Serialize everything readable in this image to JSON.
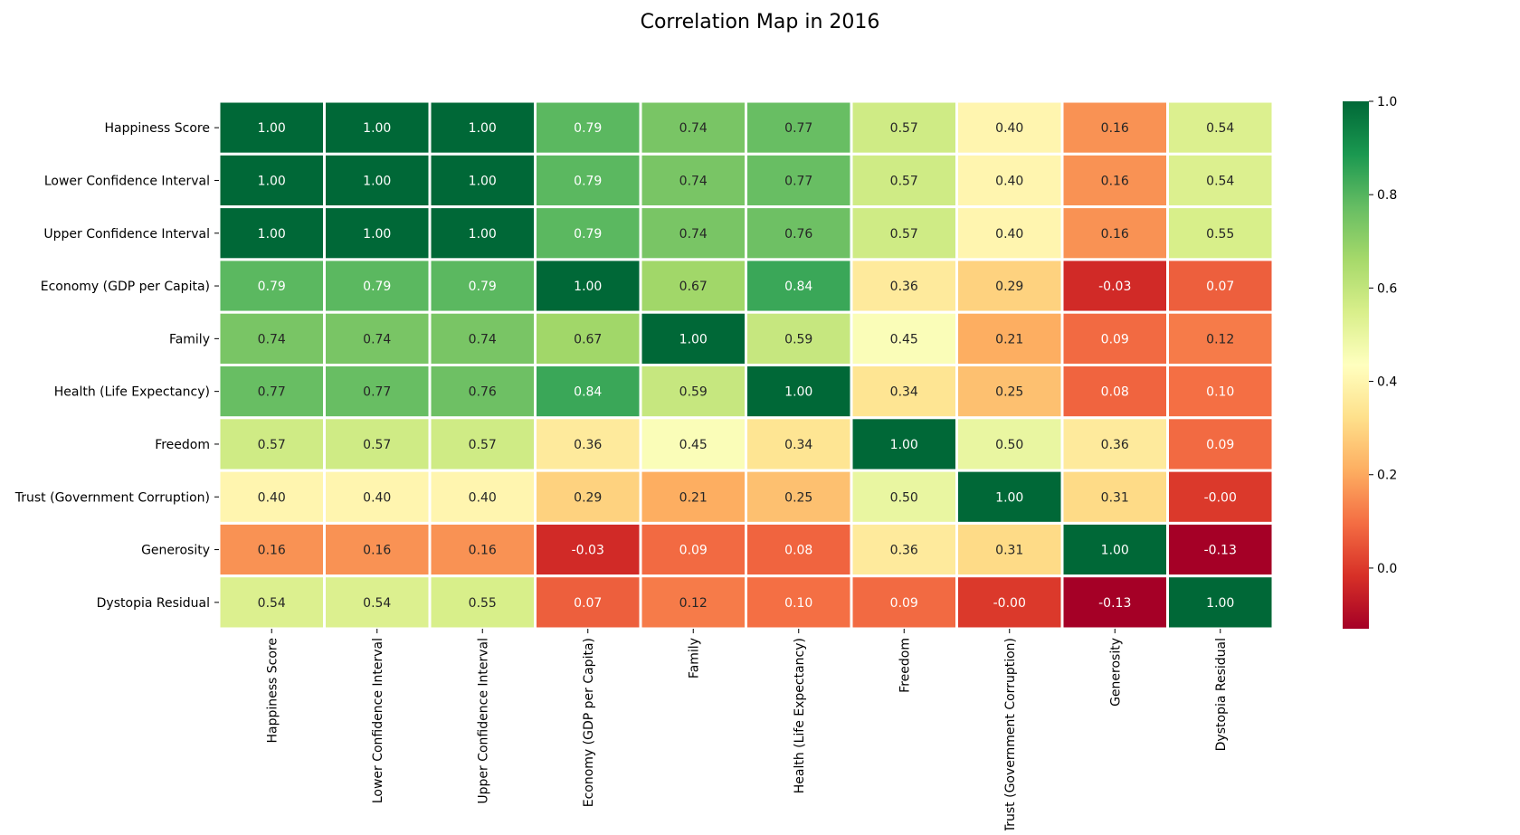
{
  "chart_data": {
    "type": "heatmap",
    "title": "Correlation Map in 2016",
    "variables": [
      "Happiness Score",
      "Lower Confidence Interval",
      "Upper Confidence Interval",
      "Economy (GDP per Capita)",
      "Family",
      "Health (Life Expectancy)",
      "Freedom",
      "Trust (Government Corruption)",
      "Generosity",
      "Dystopia Residual"
    ],
    "matrix": [
      [
        1.0,
        1.0,
        1.0,
        0.79,
        0.74,
        0.77,
        0.57,
        0.4,
        0.16,
        0.54
      ],
      [
        1.0,
        1.0,
        1.0,
        0.79,
        0.74,
        0.77,
        0.57,
        0.4,
        0.16,
        0.54
      ],
      [
        1.0,
        1.0,
        1.0,
        0.79,
        0.74,
        0.76,
        0.57,
        0.4,
        0.16,
        0.55
      ],
      [
        0.79,
        0.79,
        0.79,
        1.0,
        0.67,
        0.84,
        0.36,
        0.29,
        -0.03,
        0.07
      ],
      [
        0.74,
        0.74,
        0.74,
        0.67,
        1.0,
        0.59,
        0.45,
        0.21,
        0.09,
        0.12
      ],
      [
        0.77,
        0.77,
        0.76,
        0.84,
        0.59,
        1.0,
        0.34,
        0.25,
        0.08,
        0.1
      ],
      [
        0.57,
        0.57,
        0.57,
        0.36,
        0.45,
        0.34,
        1.0,
        0.5,
        0.36,
        0.09
      ],
      [
        0.4,
        0.4,
        0.4,
        0.29,
        0.21,
        0.25,
        0.5,
        1.0,
        0.31,
        -0.0
      ],
      [
        0.16,
        0.16,
        0.16,
        -0.03,
        0.09,
        0.08,
        0.36,
        0.31,
        1.0,
        -0.13
      ],
      [
        0.54,
        0.54,
        0.55,
        0.07,
        0.12,
        0.1,
        0.09,
        -0.0,
        -0.13,
        1.0
      ]
    ],
    "colorbar": {
      "colormap": "RdYlGn",
      "vmin": -0.13,
      "vmax": 1.0,
      "ticks": [
        0.0,
        0.2,
        0.4,
        0.6,
        0.8,
        1.0
      ]
    },
    "annotation_format": "2 decimals",
    "grid_lines_color": "#ffffff"
  }
}
